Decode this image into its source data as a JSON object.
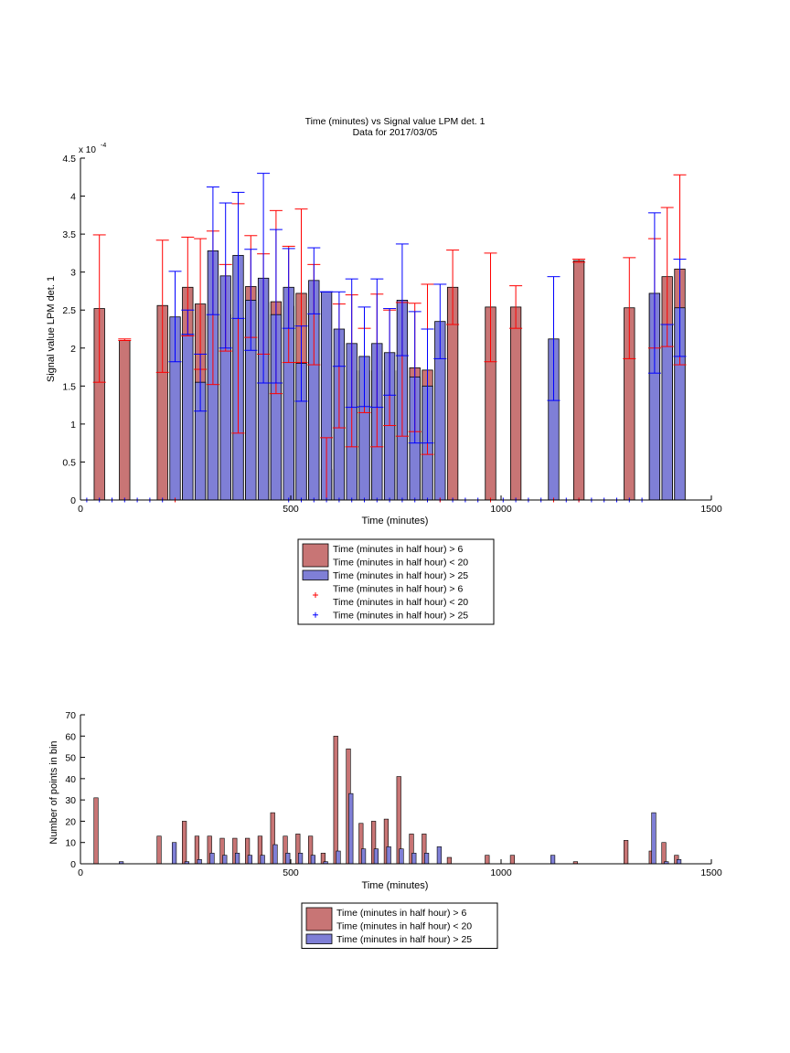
{
  "colors": {
    "red_bar": "#c87575",
    "blue_bar": "#7f7fd6",
    "red_err": "#ff0000",
    "blue_err": "#0000ff",
    "axis": "#000000"
  },
  "chart_data": [
    {
      "type": "bar",
      "title": "Time (minutes) vs Signal value LPM det. 1",
      "subtitle": "Data for 2017/03/05",
      "xlabel": "Time (minutes)",
      "ylabel": "Signal value LPM det. 1",
      "y_exponent_label": "x 10",
      "y_exponent_power": "-4",
      "xlim": [
        0,
        1500
      ],
      "ylim": [
        0,
        4.5
      ],
      "xticks": [
        "0",
        "500",
        "1000",
        "1500"
      ],
      "yticks": [
        "0",
        "0.5",
        "1",
        "1.5",
        "2",
        "2.5",
        "3",
        "3.5",
        "4",
        "4.5"
      ],
      "grid": false,
      "legend_position": "below",
      "legend": [
        {
          "kind": "bar",
          "color": "red",
          "label": [
            "Time (minutes in half hour) > 6",
            "Time (minutes in half hour) < 20"
          ]
        },
        {
          "kind": "bar",
          "color": "blue",
          "label": [
            "Time (minutes in half hour) > 25"
          ]
        },
        {
          "kind": "marker",
          "color": "red",
          "label": [
            "Time (minutes in half hour) > 6",
            "Time (minutes in half hour) < 20"
          ]
        },
        {
          "kind": "marker",
          "color": "blue",
          "label": [
            "Time (minutes in half hour) > 25"
          ]
        }
      ],
      "series": [
        {
          "color": "red",
          "bar_width": 25,
          "points": [
            {
              "x": 45,
              "y": 2.52,
              "lo": 1.55,
              "hi": 3.49
            },
            {
              "x": 105,
              "y": 2.1,
              "lo": 2.1,
              "hi": 2.12
            },
            {
              "x": 195,
              "y": 2.56,
              "lo": 1.68,
              "hi": 3.42
            },
            {
              "x": 255,
              "y": 2.8,
              "lo": 2.16,
              "hi": 3.46
            },
            {
              "x": 285,
              "y": 2.58,
              "lo": 1.72,
              "hi": 3.44
            },
            {
              "x": 315,
              "y": 2.44,
              "lo": 1.52,
              "hi": 3.54
            },
            {
              "x": 345,
              "y": 2.44,
              "lo": 1.96,
              "hi": 3.1
            },
            {
              "x": 375,
              "y": 2.4,
              "lo": 0.88,
              "hi": 3.9
            },
            {
              "x": 405,
              "y": 2.81,
              "lo": 2.14,
              "hi": 3.48
            },
            {
              "x": 435,
              "y": 2.6,
              "lo": 1.92,
              "hi": 3.24
            },
            {
              "x": 465,
              "y": 2.61,
              "lo": 1.4,
              "hi": 3.81
            },
            {
              "x": 495,
              "y": 2.55,
              "lo": 1.81,
              "hi": 3.34
            },
            {
              "x": 525,
              "y": 2.72,
              "lo": 1.81,
              "hi": 3.83
            },
            {
              "x": 555,
              "y": 2.44,
              "lo": 1.78,
              "hi": 3.1
            },
            {
              "x": 585,
              "y": 0.4,
              "lo": 0.0,
              "hi": 0.82
            },
            {
              "x": 615,
              "y": 1.75,
              "lo": 0.95,
              "hi": 2.58
            },
            {
              "x": 645,
              "y": 1.7,
              "lo": 0.7,
              "hi": 2.7
            },
            {
              "x": 675,
              "y": 1.7,
              "lo": 1.15,
              "hi": 2.26
            },
            {
              "x": 705,
              "y": 1.7,
              "lo": 0.7,
              "hi": 2.71
            },
            {
              "x": 735,
              "y": 1.7,
              "lo": 0.98,
              "hi": 2.5
            },
            {
              "x": 765,
              "y": 1.7,
              "lo": 0.84,
              "hi": 2.6
            },
            {
              "x": 795,
              "y": 1.74,
              "lo": 0.9,
              "hi": 2.59
            },
            {
              "x": 825,
              "y": 1.71,
              "lo": 0.6,
              "hi": 2.84
            },
            {
              "x": 885,
              "y": 2.8,
              "lo": 2.31,
              "hi": 3.29
            },
            {
              "x": 975,
              "y": 2.54,
              "lo": 1.82,
              "hi": 3.25
            },
            {
              "x": 1035,
              "y": 2.54,
              "lo": 2.26,
              "hi": 2.82
            },
            {
              "x": 1185,
              "y": 3.15,
              "lo": 3.13,
              "hi": 3.17
            },
            {
              "x": 1305,
              "y": 2.53,
              "lo": 1.86,
              "hi": 3.19
            },
            {
              "x": 1365,
              "y": 2.72,
              "lo": 2.0,
              "hi": 3.44
            },
            {
              "x": 1395,
              "y": 2.94,
              "lo": 2.02,
              "hi": 3.85
            },
            {
              "x": 1425,
              "y": 3.04,
              "lo": 1.78,
              "hi": 4.28
            }
          ]
        },
        {
          "color": "blue",
          "bar_width": 25,
          "points": [
            {
              "x": 225,
              "y": 2.41,
              "lo": 1.82,
              "hi": 3.01
            },
            {
              "x": 255,
              "y": 2.18,
              "lo": 2.18,
              "hi": 2.5
            },
            {
              "x": 285,
              "y": 1.55,
              "lo": 1.17,
              "hi": 1.92
            },
            {
              "x": 315,
              "y": 3.28,
              "lo": 2.44,
              "hi": 4.12
            },
            {
              "x": 345,
              "y": 2.95,
              "lo": 2.0,
              "hi": 3.91
            },
            {
              "x": 375,
              "y": 3.22,
              "lo": 2.39,
              "hi": 4.05
            },
            {
              "x": 405,
              "y": 2.63,
              "lo": 1.97,
              "hi": 3.3
            },
            {
              "x": 435,
              "y": 2.92,
              "lo": 1.54,
              "hi": 4.3
            },
            {
              "x": 465,
              "y": 2.44,
              "lo": 1.54,
              "hi": 3.56
            },
            {
              "x": 495,
              "y": 2.8,
              "lo": 2.26,
              "hi": 3.31
            },
            {
              "x": 525,
              "y": 1.8,
              "lo": 1.3,
              "hi": 2.29
            },
            {
              "x": 555,
              "y": 2.89,
              "lo": 2.45,
              "hi": 3.32
            },
            {
              "x": 585,
              "y": 2.74,
              "lo": 2.74,
              "hi": 2.74
            },
            {
              "x": 615,
              "y": 2.25,
              "lo": 1.76,
              "hi": 2.74
            },
            {
              "x": 645,
              "y": 2.06,
              "lo": 1.22,
              "hi": 2.91
            },
            {
              "x": 675,
              "y": 1.89,
              "lo": 1.23,
              "hi": 2.54
            },
            {
              "x": 705,
              "y": 2.06,
              "lo": 1.22,
              "hi": 2.91
            },
            {
              "x": 735,
              "y": 1.94,
              "lo": 1.38,
              "hi": 2.52
            },
            {
              "x": 765,
              "y": 2.63,
              "lo": 1.9,
              "hi": 3.37
            },
            {
              "x": 795,
              "y": 1.62,
              "lo": 0.75,
              "hi": 2.48
            },
            {
              "x": 825,
              "y": 1.5,
              "lo": 0.75,
              "hi": 2.25
            },
            {
              "x": 855,
              "y": 2.35,
              "lo": 1.86,
              "hi": 2.84
            },
            {
              "x": 1125,
              "y": 2.12,
              "lo": 1.31,
              "hi": 2.94
            },
            {
              "x": 1365,
              "y": 2.72,
              "lo": 1.67,
              "hi": 3.78
            },
            {
              "x": 1395,
              "y": 2.31,
              "lo": 2.31,
              "hi": 2.31
            },
            {
              "x": 1425,
              "y": 2.53,
              "lo": 1.89,
              "hi": 3.17
            }
          ]
        },
        {
          "color": "blue_marker_at_zero",
          "x": [
            15,
            45,
            75,
            105,
            135,
            165,
            195,
            495,
            525,
            555,
            585,
            615,
            645,
            675,
            705,
            735,
            765,
            795,
            825,
            855,
            885,
            915,
            945,
            975,
            1005,
            1035,
            1065,
            1095,
            1125,
            1155,
            1185,
            1215,
            1245,
            1275,
            1305,
            1335
          ]
        },
        {
          "color": "red_marker_at_zero",
          "x": [
            225,
            855,
            975,
            1125,
            1185
          ]
        }
      ]
    },
    {
      "type": "bar",
      "title": "",
      "xlabel": "Time (minutes)",
      "ylabel": "Number of points in bin",
      "xlim": [
        0,
        1500
      ],
      "ylim": [
        0,
        70
      ],
      "xticks": [
        "0",
        "500",
        "1000",
        "1500"
      ],
      "yticks": [
        "0",
        "10",
        "20",
        "30",
        "40",
        "50",
        "60",
        "70"
      ],
      "grid": false,
      "legend_position": "below",
      "legend": [
        {
          "kind": "bar",
          "color": "red",
          "label": [
            "Time (minutes in half hour) > 6",
            "Time (minutes in half hour) < 20"
          ]
        },
        {
          "kind": "bar",
          "color": "blue",
          "label": [
            "Time (minutes in half hour) > 25"
          ]
        }
      ],
      "series": [
        {
          "color": "red",
          "bar_width": 10,
          "points": [
            {
              "x": 37,
              "y": 31
            },
            {
              "x": 187,
              "y": 13
            },
            {
              "x": 247,
              "y": 20
            },
            {
              "x": 277,
              "y": 13
            },
            {
              "x": 307,
              "y": 13
            },
            {
              "x": 337,
              "y": 12
            },
            {
              "x": 367,
              "y": 12
            },
            {
              "x": 397,
              "y": 12
            },
            {
              "x": 427,
              "y": 13
            },
            {
              "x": 457,
              "y": 24
            },
            {
              "x": 487,
              "y": 13
            },
            {
              "x": 517,
              "y": 14
            },
            {
              "x": 547,
              "y": 13
            },
            {
              "x": 577,
              "y": 5
            },
            {
              "x": 607,
              "y": 60
            },
            {
              "x": 637,
              "y": 54
            },
            {
              "x": 667,
              "y": 19
            },
            {
              "x": 697,
              "y": 20
            },
            {
              "x": 727,
              "y": 21
            },
            {
              "x": 757,
              "y": 41
            },
            {
              "x": 787,
              "y": 14
            },
            {
              "x": 817,
              "y": 14
            },
            {
              "x": 877,
              "y": 3
            },
            {
              "x": 967,
              "y": 4
            },
            {
              "x": 1027,
              "y": 4
            },
            {
              "x": 1177,
              "y": 1
            },
            {
              "x": 1297,
              "y": 11
            },
            {
              "x": 1357,
              "y": 6
            },
            {
              "x": 1387,
              "y": 10
            },
            {
              "x": 1417,
              "y": 4
            }
          ]
        },
        {
          "color": "blue",
          "bar_width": 10,
          "points": [
            {
              "x": 97,
              "y": 1
            },
            {
              "x": 223,
              "y": 10
            },
            {
              "x": 253,
              "y": 1
            },
            {
              "x": 283,
              "y": 2
            },
            {
              "x": 313,
              "y": 5
            },
            {
              "x": 343,
              "y": 4
            },
            {
              "x": 373,
              "y": 5
            },
            {
              "x": 403,
              "y": 4
            },
            {
              "x": 433,
              "y": 4
            },
            {
              "x": 463,
              "y": 9
            },
            {
              "x": 493,
              "y": 5
            },
            {
              "x": 523,
              "y": 5
            },
            {
              "x": 553,
              "y": 4
            },
            {
              "x": 583,
              "y": 1
            },
            {
              "x": 613,
              "y": 6
            },
            {
              "x": 643,
              "y": 33
            },
            {
              "x": 673,
              "y": 7
            },
            {
              "x": 703,
              "y": 7
            },
            {
              "x": 733,
              "y": 8
            },
            {
              "x": 763,
              "y": 7
            },
            {
              "x": 793,
              "y": 5
            },
            {
              "x": 823,
              "y": 5
            },
            {
              "x": 853,
              "y": 8
            },
            {
              "x": 1123,
              "y": 4
            },
            {
              "x": 1363,
              "y": 24
            },
            {
              "x": 1393,
              "y": 1
            },
            {
              "x": 1423,
              "y": 2
            }
          ]
        }
      ]
    }
  ]
}
